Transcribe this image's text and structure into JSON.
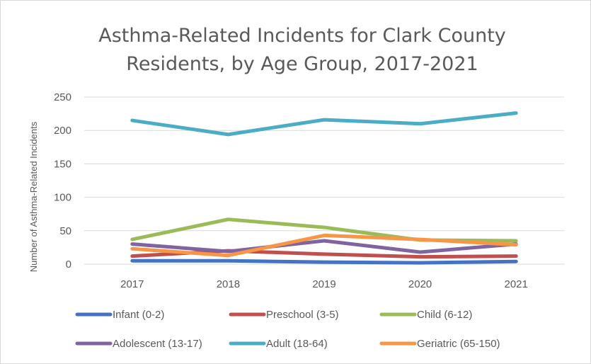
{
  "chart_data": {
    "type": "line",
    "title_lines": [
      "Asthma-Related Incidents for Clark County",
      "Residents, by Age Group, 2017-2021"
    ],
    "ylabel": "Number of Asthma-Related Incidents",
    "xlabel": "",
    "categories": [
      "2017",
      "2018",
      "2019",
      "2020",
      "2021"
    ],
    "ylim": [
      0,
      250
    ],
    "yticks": [
      0,
      50,
      100,
      150,
      200,
      250
    ],
    "grid": "horizontal",
    "legend_position": "bottom",
    "series": [
      {
        "name": "Infant (0-2)",
        "color": "#4472C4",
        "values": [
          5,
          5,
          3,
          2,
          4
        ]
      },
      {
        "name": "Preschool (3-5)",
        "color": "#C0504D",
        "values": [
          12,
          20,
          15,
          11,
          12
        ]
      },
      {
        "name": "Child (6-12)",
        "color": "#9BBB59",
        "values": [
          37,
          67,
          55,
          36,
          35
        ]
      },
      {
        "name": "Adolescent (13-17)",
        "color": "#8064A2",
        "values": [
          30,
          19,
          35,
          18,
          30
        ]
      },
      {
        "name": "Adult (18-64)",
        "color": "#4BACC6",
        "values": [
          215,
          194,
          216,
          210,
          226
        ]
      },
      {
        "name": "Geriatric (65-150)",
        "color": "#F79646",
        "values": [
          23,
          13,
          43,
          37,
          29
        ]
      }
    ]
  }
}
